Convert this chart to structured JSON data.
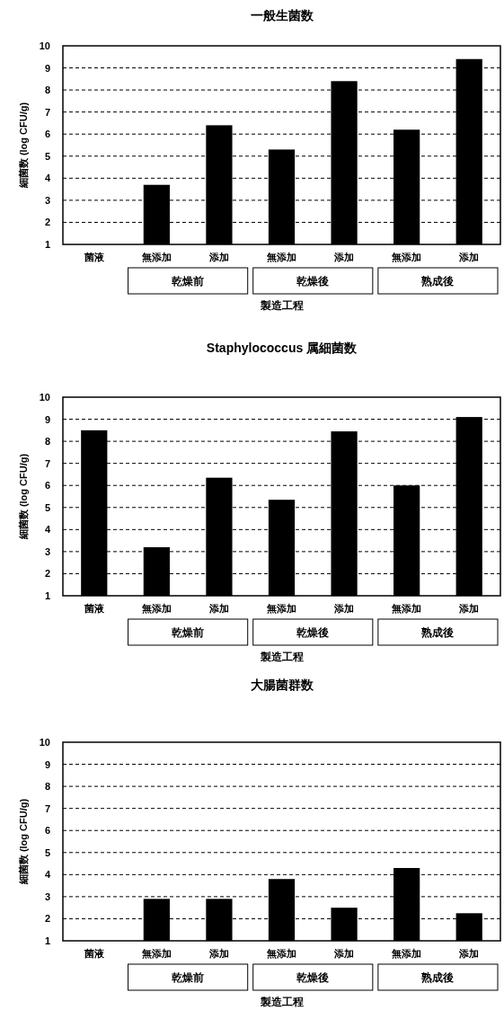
{
  "chart_data": [
    {
      "type": "bar",
      "title": "一般生菌数",
      "ylabel": "細菌数 (log CFU/g)",
      "xlabel": "製造工程",
      "categories": [
        "菌液",
        "無添加",
        "添加",
        "無添加",
        "添加",
        "無添加",
        "添加"
      ],
      "values": [
        null,
        3.7,
        6.4,
        5.3,
        8.4,
        6.2,
        9.4
      ],
      "color": "#000000",
      "ylim": [
        1,
        10
      ],
      "yticks": [
        1,
        2,
        3,
        4,
        5,
        6,
        7,
        8,
        9,
        10
      ],
      "grid": "y",
      "annotations": [
        "乾燥前",
        "乾燥後",
        "熟成後"
      ]
    },
    {
      "type": "bar",
      "title": "Staphylococcus 属細菌数",
      "ylabel": "細菌数 (log CFU/g)",
      "xlabel": "製造工程",
      "categories": [
        "菌液",
        "無添加",
        "添加",
        "無添加",
        "添加",
        "無添加",
        "添加"
      ],
      "values": [
        8.5,
        3.2,
        6.35,
        5.35,
        8.45,
        6.0,
        9.1
      ],
      "color": "#000000",
      "ylim": [
        1,
        10
      ],
      "yticks": [
        1,
        2,
        3,
        4,
        5,
        6,
        7,
        8,
        9,
        10
      ],
      "grid": "y",
      "annotations": [
        "乾燥前",
        "乾燥後",
        "熟成後"
      ]
    },
    {
      "type": "bar",
      "title": "大腸菌群数",
      "ylabel": "細菌数 (log CFU/g)",
      "xlabel": "製造工程",
      "categories": [
        "菌液",
        "無添加",
        "添加",
        "無添加",
        "添加",
        "無添加",
        "添加"
      ],
      "values": [
        null,
        2.9,
        2.9,
        3.8,
        2.5,
        4.3,
        2.25
      ],
      "color": "#000000",
      "ylim": [
        1,
        10
      ],
      "yticks": [
        1,
        2,
        3,
        4,
        5,
        6,
        7,
        8,
        9,
        10
      ],
      "grid": "y",
      "annotations": [
        "乾燥前",
        "乾燥後",
        "熟成後"
      ]
    }
  ]
}
